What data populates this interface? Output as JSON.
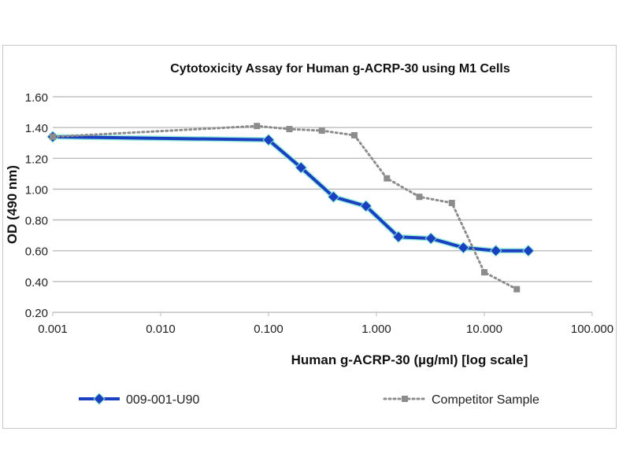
{
  "chart_data": {
    "type": "line",
    "title": "Cytotoxicity Assay for Human g-ACRP-30 using M1 Cells",
    "xlabel": "Human g-ACRP-30 (µg/ml) [log scale]",
    "ylabel": "OD (490 nm)",
    "x_scale": "log",
    "xlim": [
      0.001,
      100
    ],
    "ylim": [
      0.2,
      1.6
    ],
    "x_ticks": [
      "0.001",
      "0.010",
      "0.100",
      "1.000",
      "10.000",
      "100.000"
    ],
    "y_ticks": [
      "0.20",
      "0.40",
      "0.60",
      "0.80",
      "1.00",
      "1.20",
      "1.40",
      "1.60"
    ],
    "grid": "horizontal",
    "legend": "bottom",
    "series": [
      {
        "name": "009-001-U90",
        "color": "#1a3fc0",
        "marker": "diamond",
        "style": "solid",
        "x": [
          0.001,
          0.1,
          0.2,
          0.4,
          0.8,
          1.6,
          3.2,
          6.4,
          12.8,
          25.6
        ],
        "y": [
          1.34,
          1.32,
          1.14,
          0.95,
          0.89,
          0.69,
          0.68,
          0.62,
          0.6,
          0.6
        ]
      },
      {
        "name": "Competitor Sample",
        "color": "#8c8c8c",
        "marker": "square",
        "style": "dotted",
        "x": [
          0.001,
          0.078,
          0.156,
          0.3125,
          0.625,
          1.25,
          2.5,
          5,
          10,
          20
        ],
        "y": [
          1.34,
          1.41,
          1.39,
          1.38,
          1.35,
          1.07,
          0.95,
          0.91,
          0.46,
          0.35
        ]
      }
    ]
  }
}
